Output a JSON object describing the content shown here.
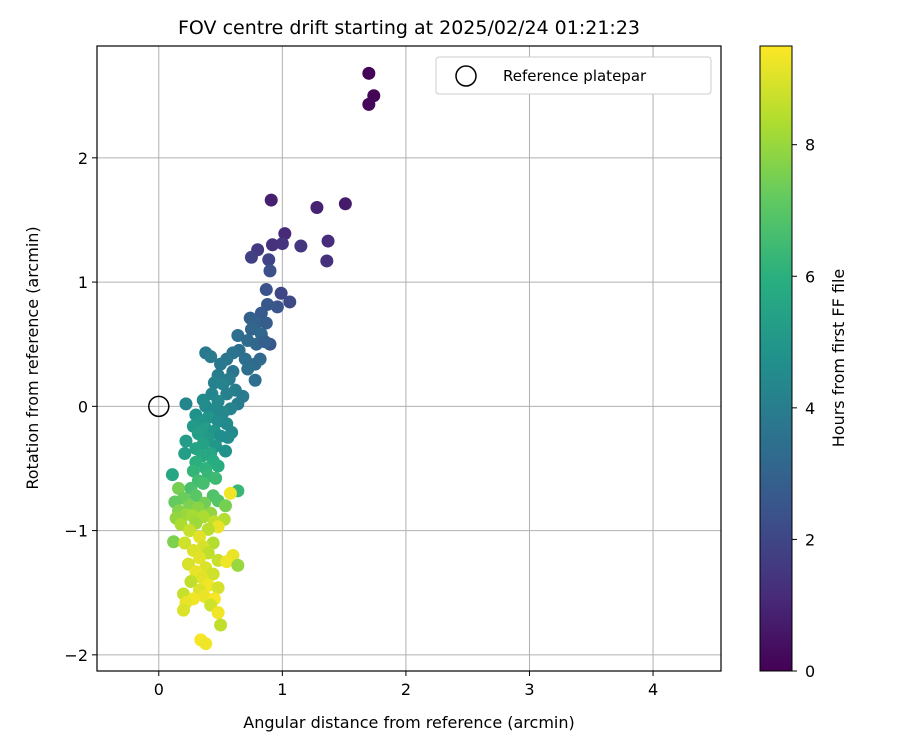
{
  "chart_data": {
    "type": "scatter",
    "title": "FOV centre drift starting at 2025/02/24 01:21:23",
    "xlabel": "Angular distance from reference (arcmin)",
    "ylabel": "Rotation from reference (arcmin)",
    "xlim": [
      -0.5,
      4.55
    ],
    "ylim": [
      -2.13,
      2.9
    ],
    "xticks": [
      0,
      1,
      2,
      3,
      4
    ],
    "yticks": [
      -2,
      -1,
      0,
      1,
      2
    ],
    "xtick_labels": [
      "0",
      "1",
      "2",
      "3",
      "4"
    ],
    "ytick_labels": [
      "−2",
      "−1",
      "0",
      "1",
      "2"
    ],
    "grid": true,
    "legend": {
      "label": "Reference platepar",
      "placement": "top-right"
    },
    "reference_point": {
      "x": 0,
      "y": 0
    },
    "colorbar": {
      "label": "Hours from first FF file",
      "range": [
        0,
        9.5
      ],
      "ticks": [
        0,
        2,
        4,
        6,
        8
      ],
      "tick_labels": [
        "0",
        "2",
        "4",
        "6",
        "8"
      ],
      "colormap": "viridis"
    },
    "points": [
      {
        "x": 1.7,
        "y": 2.68,
        "t": 0.05
      },
      {
        "x": 1.74,
        "y": 2.5,
        "t": 0.1
      },
      {
        "x": 1.7,
        "y": 2.43,
        "t": 0.15
      },
      {
        "x": 1.51,
        "y": 1.63,
        "t": 0.7
      },
      {
        "x": 0.91,
        "y": 1.66,
        "t": 0.8
      },
      {
        "x": 1.28,
        "y": 1.6,
        "t": 0.9
      },
      {
        "x": 1.02,
        "y": 1.39,
        "t": 1.1
      },
      {
        "x": 1.37,
        "y": 1.33,
        "t": 1.2
      },
      {
        "x": 0.92,
        "y": 1.3,
        "t": 1.3
      },
      {
        "x": 1.0,
        "y": 1.31,
        "t": 1.4
      },
      {
        "x": 1.15,
        "y": 1.29,
        "t": 1.5
      },
      {
        "x": 0.8,
        "y": 1.26,
        "t": 1.6
      },
      {
        "x": 0.75,
        "y": 1.2,
        "t": 1.8
      },
      {
        "x": 0.89,
        "y": 1.18,
        "t": 1.9
      },
      {
        "x": 1.36,
        "y": 1.17,
        "t": 1.3
      },
      {
        "x": 0.9,
        "y": 1.09,
        "t": 2.3
      },
      {
        "x": 0.87,
        "y": 0.94,
        "t": 2.4
      },
      {
        "x": 0.99,
        "y": 0.91,
        "t": 2.0
      },
      {
        "x": 1.06,
        "y": 0.84,
        "t": 2.1
      },
      {
        "x": 0.96,
        "y": 0.8,
        "t": 2.5
      },
      {
        "x": 0.88,
        "y": 0.82,
        "t": 2.6
      },
      {
        "x": 0.83,
        "y": 0.75,
        "t": 2.7
      },
      {
        "x": 0.74,
        "y": 0.71,
        "t": 2.9
      },
      {
        "x": 0.79,
        "y": 0.67,
        "t": 3.0
      },
      {
        "x": 0.87,
        "y": 0.67,
        "t": 2.8
      },
      {
        "x": 0.75,
        "y": 0.62,
        "t": 3.1
      },
      {
        "x": 0.83,
        "y": 0.58,
        "t": 3.2
      },
      {
        "x": 0.64,
        "y": 0.57,
        "t": 3.4
      },
      {
        "x": 0.72,
        "y": 0.53,
        "t": 3.3
      },
      {
        "x": 0.79,
        "y": 0.5,
        "t": 3.1
      },
      {
        "x": 0.9,
        "y": 0.5,
        "t": 2.6
      },
      {
        "x": 0.86,
        "y": 0.52,
        "t": 2.9
      },
      {
        "x": 0.65,
        "y": 0.45,
        "t": 3.5
      },
      {
        "x": 0.6,
        "y": 0.43,
        "t": 3.6
      },
      {
        "x": 0.38,
        "y": 0.43,
        "t": 3.8
      },
      {
        "x": 0.42,
        "y": 0.4,
        "t": 3.9
      },
      {
        "x": 0.55,
        "y": 0.38,
        "t": 3.7
      },
      {
        "x": 0.7,
        "y": 0.38,
        "t": 3.4
      },
      {
        "x": 0.82,
        "y": 0.38,
        "t": 3.2
      },
      {
        "x": 0.5,
        "y": 0.34,
        "t": 3.8
      },
      {
        "x": 0.78,
        "y": 0.34,
        "t": 3.3
      },
      {
        "x": 0.72,
        "y": 0.3,
        "t": 3.5
      },
      {
        "x": 0.6,
        "y": 0.28,
        "t": 3.7
      },
      {
        "x": 0.48,
        "y": 0.25,
        "t": 4.0
      },
      {
        "x": 0.57,
        "y": 0.22,
        "t": 3.9
      },
      {
        "x": 0.45,
        "y": 0.19,
        "t": 4.1
      },
      {
        "x": 0.52,
        "y": 0.18,
        "t": 4.2
      },
      {
        "x": 0.78,
        "y": 0.21,
        "t": 3.4
      },
      {
        "x": 0.62,
        "y": 0.13,
        "t": 4.0
      },
      {
        "x": 0.43,
        "y": 0.1,
        "t": 4.3
      },
      {
        "x": 0.55,
        "y": 0.1,
        "t": 4.1
      },
      {
        "x": 0.68,
        "y": 0.08,
        "t": 3.9
      },
      {
        "x": 0.36,
        "y": 0.05,
        "t": 4.5
      },
      {
        "x": 0.48,
        "y": 0.04,
        "t": 4.4
      },
      {
        "x": 0.22,
        "y": 0.02,
        "t": 4.3
      },
      {
        "x": 0.64,
        "y": 0.02,
        "t": 4.0
      },
      {
        "x": 0.38,
        "y": 0.0,
        "t": 4.6
      },
      {
        "x": 0.58,
        "y": -0.02,
        "t": 4.2
      },
      {
        "x": 0.44,
        "y": -0.03,
        "t": 4.5
      },
      {
        "x": 0.52,
        "y": -0.05,
        "t": 4.4
      },
      {
        "x": 0.3,
        "y": -0.07,
        "t": 4.8
      },
      {
        "x": 0.4,
        "y": -0.09,
        "t": 4.9
      },
      {
        "x": 0.34,
        "y": -0.13,
        "t": 5.0
      },
      {
        "x": 0.48,
        "y": -0.12,
        "t": 4.6
      },
      {
        "x": 0.55,
        "y": -0.14,
        "t": 4.5
      },
      {
        "x": 0.28,
        "y": -0.16,
        "t": 5.1
      },
      {
        "x": 0.38,
        "y": -0.18,
        "t": 5.2
      },
      {
        "x": 0.45,
        "y": -0.2,
        "t": 4.9
      },
      {
        "x": 0.59,
        "y": -0.21,
        "t": 4.4
      },
      {
        "x": 0.32,
        "y": -0.22,
        "t": 5.3
      },
      {
        "x": 0.5,
        "y": -0.24,
        "t": 4.7
      },
      {
        "x": 0.4,
        "y": -0.26,
        "t": 5.1
      },
      {
        "x": 0.56,
        "y": -0.25,
        "t": 4.6
      },
      {
        "x": 0.22,
        "y": -0.28,
        "t": 5.2
      },
      {
        "x": 0.36,
        "y": -0.3,
        "t": 5.4
      },
      {
        "x": 0.46,
        "y": -0.32,
        "t": 5.0
      },
      {
        "x": 0.54,
        "y": -0.36,
        "t": 4.8
      },
      {
        "x": 0.3,
        "y": -0.34,
        "t": 5.5
      },
      {
        "x": 0.42,
        "y": -0.38,
        "t": 5.6
      },
      {
        "x": 0.21,
        "y": -0.38,
        "t": 5.3
      },
      {
        "x": 0.35,
        "y": -0.4,
        "t": 5.7
      },
      {
        "x": 0.44,
        "y": -0.44,
        "t": 5.8
      },
      {
        "x": 0.3,
        "y": -0.45,
        "t": 6.0
      },
      {
        "x": 0.48,
        "y": -0.48,
        "t": 5.9
      },
      {
        "x": 0.38,
        "y": -0.5,
        "t": 6.1
      },
      {
        "x": 0.28,
        "y": -0.52,
        "t": 6.2
      },
      {
        "x": 0.11,
        "y": -0.55,
        "t": 5.6
      },
      {
        "x": 0.4,
        "y": -0.56,
        "t": 6.3
      },
      {
        "x": 0.46,
        "y": -0.58,
        "t": 6.4
      },
      {
        "x": 0.32,
        "y": -0.6,
        "t": 6.5
      },
      {
        "x": 0.36,
        "y": -0.62,
        "t": 6.6
      },
      {
        "x": 0.16,
        "y": -0.66,
        "t": 7.5
      },
      {
        "x": 0.26,
        "y": -0.66,
        "t": 6.7
      },
      {
        "x": 0.64,
        "y": -0.68,
        "t": 6.3
      },
      {
        "x": 0.58,
        "y": -0.7,
        "t": 9.3
      },
      {
        "x": 0.44,
        "y": -0.72,
        "t": 6.8
      },
      {
        "x": 0.3,
        "y": -0.72,
        "t": 7.0
      },
      {
        "x": 0.2,
        "y": -0.74,
        "t": 7.3
      },
      {
        "x": 0.48,
        "y": -0.76,
        "t": 6.9
      },
      {
        "x": 0.13,
        "y": -0.77,
        "t": 7.2
      },
      {
        "x": 0.37,
        "y": -0.78,
        "t": 7.4
      },
      {
        "x": 0.25,
        "y": -0.8,
        "t": 7.6
      },
      {
        "x": 0.54,
        "y": -0.8,
        "t": 7.5
      },
      {
        "x": 0.32,
        "y": -0.82,
        "t": 7.8
      },
      {
        "x": 0.16,
        "y": -0.84,
        "t": 7.7
      },
      {
        "x": 0.42,
        "y": -0.86,
        "t": 7.9
      },
      {
        "x": 0.22,
        "y": -0.87,
        "t": 8.0
      },
      {
        "x": 0.27,
        "y": -0.88,
        "t": 8.2
      },
      {
        "x": 0.36,
        "y": -0.89,
        "t": 8.3
      },
      {
        "x": 0.14,
        "y": -0.9,
        "t": 7.9
      },
      {
        "x": 0.53,
        "y": -0.91,
        "t": 8.4
      },
      {
        "x": 0.45,
        "y": -0.93,
        "t": 8.6
      },
      {
        "x": 0.3,
        "y": -0.94,
        "t": 8.1
      },
      {
        "x": 0.18,
        "y": -0.95,
        "t": 8.3
      },
      {
        "x": 0.48,
        "y": -0.97,
        "t": 9.2
      },
      {
        "x": 0.4,
        "y": -0.99,
        "t": 8.5
      },
      {
        "x": 0.25,
        "y": -1.0,
        "t": 8.7
      },
      {
        "x": 0.33,
        "y": -1.05,
        "t": 9.1
      },
      {
        "x": 0.12,
        "y": -1.09,
        "t": 7.6
      },
      {
        "x": 0.21,
        "y": -1.1,
        "t": 8.8
      },
      {
        "x": 0.44,
        "y": -1.1,
        "t": 8.4
      },
      {
        "x": 0.36,
        "y": -1.13,
        "t": 8.9
      },
      {
        "x": 0.28,
        "y": -1.16,
        "t": 9.0
      },
      {
        "x": 0.4,
        "y": -1.18,
        "t": 8.6
      },
      {
        "x": 0.6,
        "y": -1.2,
        "t": 9.2
      },
      {
        "x": 0.33,
        "y": -1.22,
        "t": 9.1
      },
      {
        "x": 0.48,
        "y": -1.24,
        "t": 8.7
      },
      {
        "x": 0.55,
        "y": -1.25,
        "t": 9.3
      },
      {
        "x": 0.24,
        "y": -1.27,
        "t": 8.9
      },
      {
        "x": 0.64,
        "y": -1.28,
        "t": 8.0
      },
      {
        "x": 0.38,
        "y": -1.3,
        "t": 9.0
      },
      {
        "x": 0.3,
        "y": -1.33,
        "t": 9.2
      },
      {
        "x": 0.44,
        "y": -1.35,
        "t": 8.8
      },
      {
        "x": 0.35,
        "y": -1.38,
        "t": 9.1
      },
      {
        "x": 0.26,
        "y": -1.41,
        "t": 8.6
      },
      {
        "x": 0.4,
        "y": -1.44,
        "t": 9.3
      },
      {
        "x": 0.48,
        "y": -1.46,
        "t": 8.9
      },
      {
        "x": 0.33,
        "y": -1.48,
        "t": 9.0
      },
      {
        "x": 0.2,
        "y": -1.51,
        "t": 8.7
      },
      {
        "x": 0.37,
        "y": -1.53,
        "t": 9.2
      },
      {
        "x": 0.28,
        "y": -1.55,
        "t": 9.3
      },
      {
        "x": 0.45,
        "y": -1.55,
        "t": 9.4
      },
      {
        "x": 0.22,
        "y": -1.58,
        "t": 9.2
      },
      {
        "x": 0.42,
        "y": -1.6,
        "t": 8.8
      },
      {
        "x": 0.2,
        "y": -1.64,
        "t": 9.0
      },
      {
        "x": 0.48,
        "y": -1.66,
        "t": 9.3
      },
      {
        "x": 0.5,
        "y": -1.76,
        "t": 8.6
      },
      {
        "x": 0.34,
        "y": -1.88,
        "t": 9.4
      },
      {
        "x": 0.38,
        "y": -1.91,
        "t": 9.3
      }
    ]
  }
}
